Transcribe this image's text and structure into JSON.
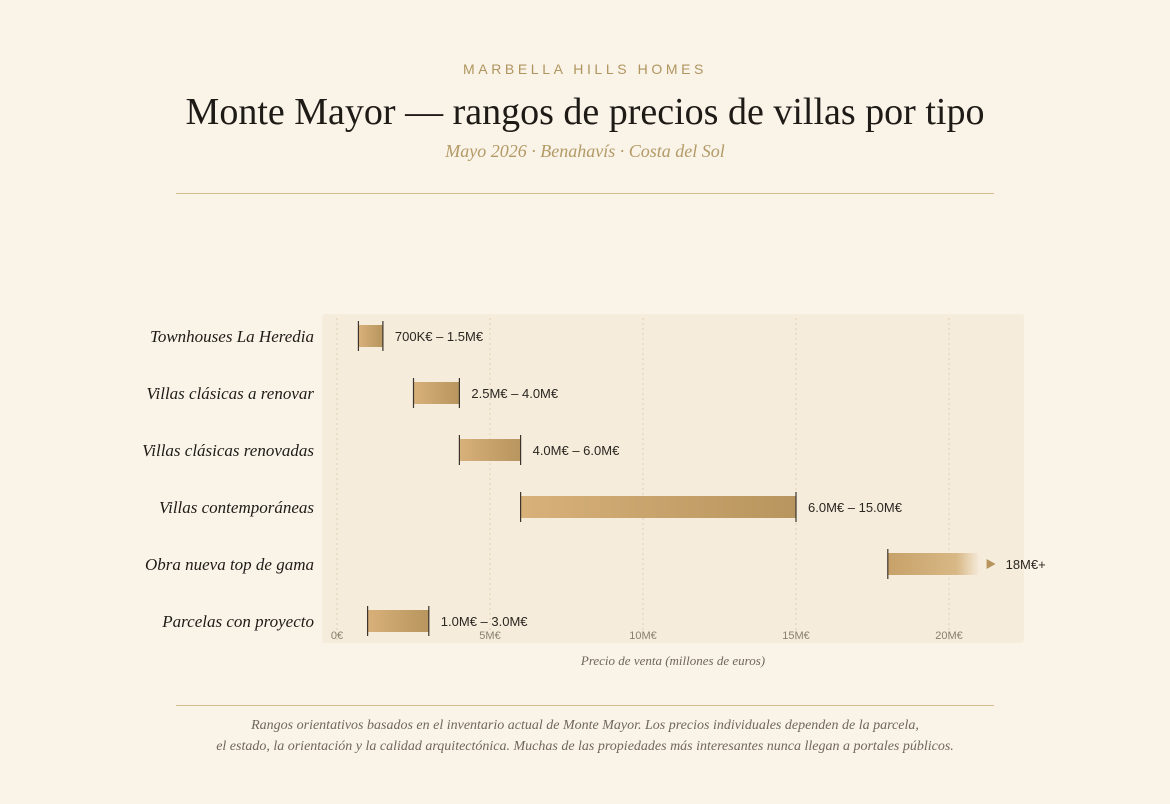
{
  "header": {
    "brand": "MARBELLA HILLS HOMES",
    "title": "Monte Mayor — rangos de precios de villas por tipo",
    "subtitle": "Mayo 2026 · Benahavís · Costa del Sol"
  },
  "chart_data": {
    "type": "bar",
    "orientation": "horizontal-range",
    "xlabel": "Precio de venta (millones de euros)",
    "xlim": [
      0,
      22
    ],
    "xticks": [
      {
        "value": 0,
        "label": "0€"
      },
      {
        "value": 5,
        "label": "5M€"
      },
      {
        "value": 10,
        "label": "10M€"
      },
      {
        "value": 15,
        "label": "15M€"
      },
      {
        "value": 20,
        "label": "20M€"
      }
    ],
    "grid": true,
    "series": [
      {
        "category": "Townhouses La Heredia",
        "min": 0.7,
        "max": 1.5,
        "label": "700K€ – 1.5M€",
        "open_ended": false
      },
      {
        "category": "Villas clásicas a renovar",
        "min": 2.5,
        "max": 4.0,
        "label": "2.5M€ – 4.0M€",
        "open_ended": false
      },
      {
        "category": "Villas clásicas renovadas",
        "min": 4.0,
        "max": 6.0,
        "label": "4.0M€ – 6.0M€",
        "open_ended": false
      },
      {
        "category": "Villas contemporáneas",
        "min": 6.0,
        "max": 15.0,
        "label": "6.0M€ – 15.0M€",
        "open_ended": false
      },
      {
        "category": "Obra nueva top de gama",
        "min": 18.0,
        "max": 21.0,
        "label": "18M€+",
        "open_ended": true
      },
      {
        "category": "Parcelas con proyecto",
        "min": 1.0,
        "max": 3.0,
        "label": "1.0M€ – 3.0M€",
        "open_ended": false
      }
    ],
    "colors": {
      "bar_light": "#d8b07a",
      "bar_dark": "#b8955e",
      "plot_bg": "#f6ecdc",
      "cap": "#3a342c"
    }
  },
  "footer": {
    "note_line1": "Rangos orientativos basados en el inventario actual de Monte Mayor. Los precios individuales dependen de la parcela,",
    "note_line2": "el estado, la orientación y la calidad arquitectónica. Muchas de las propiedades más interesantes nunca llegan a portales públicos."
  }
}
